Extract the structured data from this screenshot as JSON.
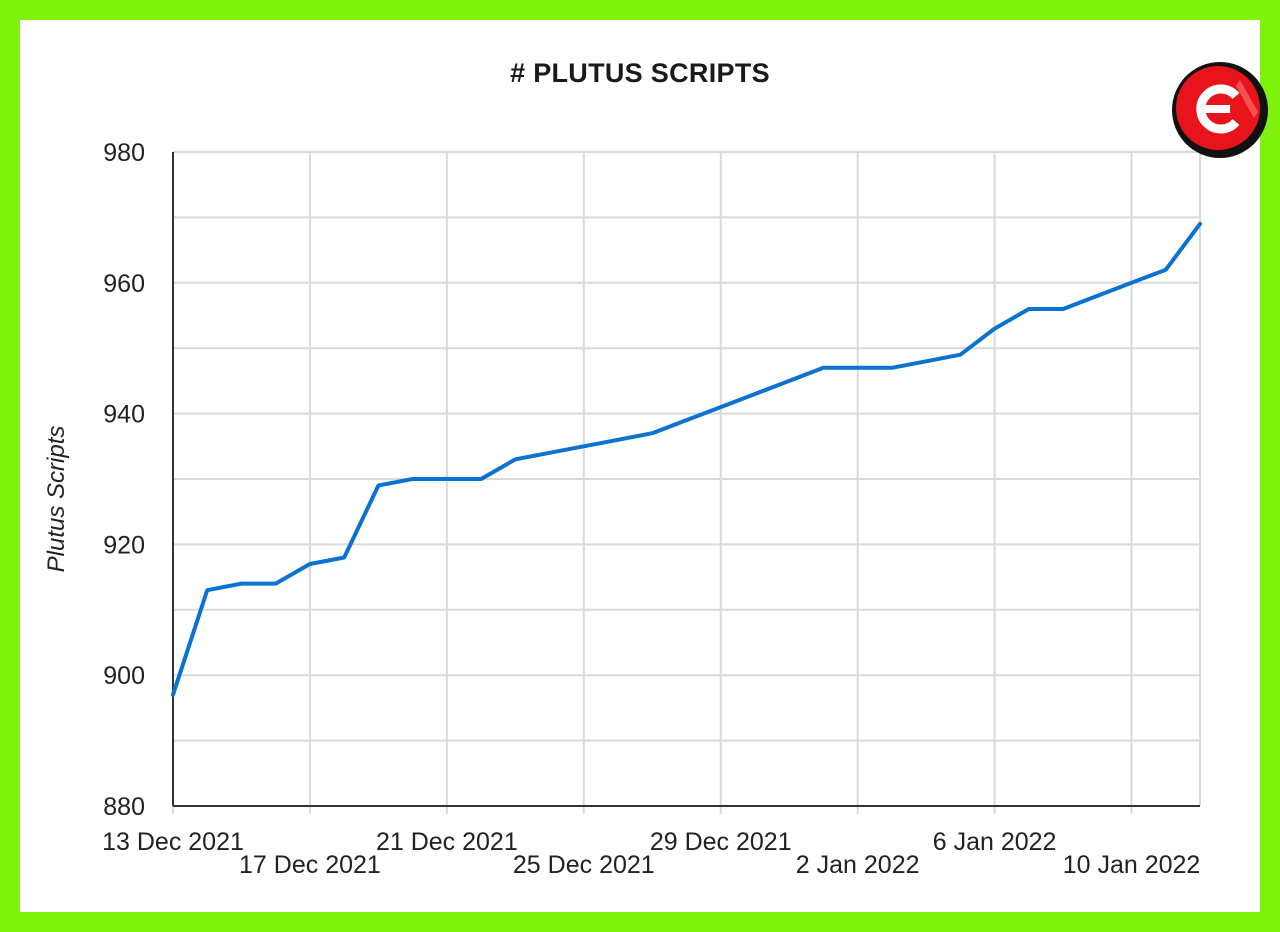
{
  "colors": {
    "frame": "#7ef20c",
    "line": "#0a73d1",
    "grid": "#d9d9d9",
    "axis": "#333333",
    "logo_red": "#e8141c"
  },
  "logo": {
    "icon": "brand-logo-icon"
  },
  "chart_data": {
    "type": "line",
    "title": "# PLUTUS SCRIPTS",
    "xlabel": "",
    "ylabel": "Plutus Scripts",
    "ylim": [
      880,
      980
    ],
    "yticks": [
      880,
      900,
      920,
      940,
      960,
      980
    ],
    "grid": true,
    "legend": "none",
    "x": [
      "2021-12-13",
      "2021-12-14",
      "2021-12-15",
      "2021-12-16",
      "2021-12-17",
      "2021-12-18",
      "2021-12-19",
      "2021-12-20",
      "2021-12-21",
      "2021-12-22",
      "2021-12-23",
      "2021-12-24",
      "2021-12-25",
      "2021-12-26",
      "2021-12-27",
      "2021-12-28",
      "2021-12-29",
      "2021-12-30",
      "2021-12-31",
      "2022-01-01",
      "2022-01-02",
      "2022-01-03",
      "2022-01-04",
      "2022-01-05",
      "2022-01-06",
      "2022-01-07",
      "2022-01-08",
      "2022-01-09",
      "2022-01-10",
      "2022-01-11",
      "2022-01-12"
    ],
    "xticks": [
      {
        "date": "2021-12-13",
        "label": "13 Dec 2021",
        "row": 1
      },
      {
        "date": "2021-12-17",
        "label": "17 Dec 2021",
        "row": 2
      },
      {
        "date": "2021-12-21",
        "label": "21 Dec 2021",
        "row": 1
      },
      {
        "date": "2021-12-25",
        "label": "25 Dec 2021",
        "row": 2
      },
      {
        "date": "2021-12-29",
        "label": "29 Dec 2021",
        "row": 1
      },
      {
        "date": "2022-01-02",
        "label": "2 Jan 2022",
        "row": 2
      },
      {
        "date": "2022-01-06",
        "label": "6 Jan 2022",
        "row": 1
      },
      {
        "date": "2022-01-10",
        "label": "10 Jan 2022",
        "row": 2
      }
    ],
    "series": [
      {
        "values": [
          897,
          913,
          914,
          914,
          917,
          918,
          929,
          930,
          930,
          930,
          933,
          934,
          935,
          936,
          937,
          939,
          941,
          943,
          945,
          947,
          947,
          947,
          948,
          949,
          953,
          956,
          956,
          958,
          960,
          962,
          969
        ]
      }
    ]
  }
}
